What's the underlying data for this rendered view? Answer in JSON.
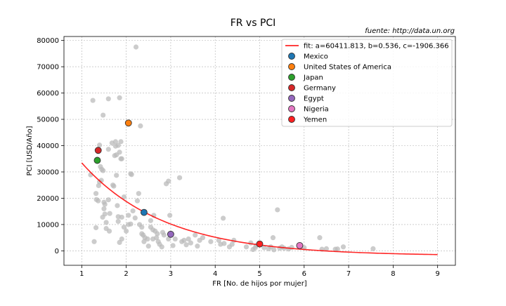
{
  "chart_data": {
    "type": "scatter",
    "title": "FR vs PCI",
    "source_note": "fuente: http://data.un.org",
    "xlabel": "FR [No. de hijos por mujer]",
    "ylabel": "PCI [USD/Año]",
    "xlim": [
      0.6,
      9.4
    ],
    "ylim": [
      -5500,
      81500
    ],
    "xticks": [
      1,
      2,
      3,
      4,
      5,
      6,
      7,
      8,
      9
    ],
    "yticks": [
      0,
      10000,
      20000,
      30000,
      40000,
      50000,
      60000,
      70000,
      80000
    ],
    "grid": true,
    "legend_position": "top-right",
    "fit": {
      "label": "fit: a=60411.813, b=0.536, c=-1906.366",
      "a": 60411.813,
      "b": 0.536,
      "c": -1906.366,
      "x_range": [
        1,
        9
      ],
      "color": "#ff0000"
    },
    "highlighted": [
      {
        "name": "Mexico",
        "x": 2.4,
        "y": 14600,
        "color": "#1f77b4"
      },
      {
        "name": "United States of America",
        "x": 2.05,
        "y": 48600,
        "color": "#ff7f0e"
      },
      {
        "name": "Japan",
        "x": 1.35,
        "y": 34400,
        "color": "#2ca02c"
      },
      {
        "name": "Germany",
        "x": 1.37,
        "y": 38200,
        "color": "#d62728"
      },
      {
        "name": "Egypt",
        "x": 3.0,
        "y": 6300,
        "color": "#9467bd"
      },
      {
        "name": "Nigeria",
        "x": 5.9,
        "y": 2000,
        "color": "#e377c2"
      },
      {
        "name": "Yemen",
        "x": 5.0,
        "y": 2600,
        "color": "#ff2020"
      }
    ],
    "background_points": {
      "color": "#bbbbbb",
      "points": [
        [
          1.25,
          57200
        ],
        [
          1.28,
          3500
        ],
        [
          1.2,
          28900
        ],
        [
          1.32,
          21800
        ],
        [
          1.32,
          8800
        ],
        [
          1.33,
          19500
        ],
        [
          1.37,
          19000
        ],
        [
          1.38,
          24800
        ],
        [
          1.4,
          26200
        ],
        [
          1.4,
          40200
        ],
        [
          1.42,
          32000
        ],
        [
          1.44,
          26800
        ],
        [
          1.45,
          31000
        ],
        [
          1.48,
          30500
        ],
        [
          1.48,
          51600
        ],
        [
          1.52,
          17700
        ],
        [
          1.5,
          16000
        ],
        [
          1.52,
          14000
        ],
        [
          1.5,
          18500
        ],
        [
          1.47,
          12800
        ],
        [
          1.55,
          10800
        ],
        [
          1.55,
          8500
        ],
        [
          1.6,
          57800
        ],
        [
          1.6,
          38600
        ],
        [
          1.6,
          19400
        ],
        [
          1.63,
          14200
        ],
        [
          1.62,
          7500
        ],
        [
          1.68,
          41000
        ],
        [
          1.7,
          25000
        ],
        [
          1.72,
          24600
        ],
        [
          1.74,
          36200
        ],
        [
          1.76,
          39800
        ],
        [
          1.76,
          41500
        ],
        [
          1.78,
          36500
        ],
        [
          1.78,
          28700
        ],
        [
          1.82,
          40100
        ],
        [
          1.85,
          58200
        ],
        [
          1.85,
          37500
        ],
        [
          1.88,
          35000
        ],
        [
          1.9,
          35000
        ],
        [
          1.88,
          41500
        ],
        [
          1.8,
          17200
        ],
        [
          1.82,
          13000
        ],
        [
          1.82,
          11200
        ],
        [
          1.85,
          3200
        ],
        [
          1.9,
          12800
        ],
        [
          1.95,
          20500
        ],
        [
          1.95,
          9000
        ],
        [
          2.05,
          13500
        ],
        [
          2.1,
          29300
        ],
        [
          2.12,
          29000
        ],
        [
          2.05,
          10000
        ],
        [
          2.1,
          10200
        ],
        [
          2.15,
          15200
        ],
        [
          2.22,
          77500
        ],
        [
          2.25,
          19000
        ],
        [
          2.28,
          21800
        ],
        [
          2.3,
          10000
        ],
        [
          2.32,
          47500
        ],
        [
          2.35,
          9000
        ],
        [
          2.38,
          6000
        ],
        [
          2.42,
          5000
        ],
        [
          2.4,
          3500
        ],
        [
          2.48,
          4500
        ],
        [
          2.5,
          1800
        ],
        [
          2.55,
          11500
        ],
        [
          2.55,
          9000
        ],
        [
          2.6,
          8000
        ],
        [
          2.62,
          13500
        ],
        [
          2.65,
          7500
        ],
        [
          2.68,
          5000
        ],
        [
          2.72,
          3500
        ],
        [
          2.75,
          2500
        ],
        [
          2.8,
          1500
        ],
        [
          2.82,
          7000
        ],
        [
          2.85,
          6000
        ],
        [
          2.9,
          25500
        ],
        [
          2.95,
          26500
        ],
        [
          2.98,
          13500
        ],
        [
          3.05,
          2000
        ],
        [
          3.2,
          27800
        ],
        [
          3.25,
          3500
        ],
        [
          3.3,
          4000
        ],
        [
          3.35,
          2300
        ],
        [
          3.4,
          4500
        ],
        [
          3.45,
          3000
        ],
        [
          3.55,
          6000
        ],
        [
          3.6,
          1800
        ],
        [
          3.65,
          4000
        ],
        [
          3.72,
          5000
        ],
        [
          3.9,
          3500
        ],
        [
          4.08,
          4000
        ],
        [
          4.12,
          2500
        ],
        [
          4.18,
          12400
        ],
        [
          4.2,
          2800
        ],
        [
          4.32,
          1500
        ],
        [
          4.38,
          2500
        ],
        [
          4.42,
          4000
        ],
        [
          4.7,
          1500
        ],
        [
          4.8,
          3000
        ],
        [
          4.85,
          500
        ],
        [
          4.9,
          1200
        ],
        [
          4.92,
          2000
        ],
        [
          5.1,
          1200
        ],
        [
          5.2,
          800
        ],
        [
          5.25,
          1500
        ],
        [
          5.3,
          5000
        ],
        [
          5.32,
          400
        ],
        [
          5.4,
          15600
        ],
        [
          5.45,
          1000
        ],
        [
          5.5,
          1500
        ],
        [
          5.55,
          1000
        ],
        [
          5.65,
          700
        ],
        [
          5.72,
          1300
        ],
        [
          6.0,
          1200
        ],
        [
          6.35,
          5000
        ],
        [
          6.4,
          600
        ],
        [
          6.5,
          800
        ],
        [
          6.7,
          600
        ],
        [
          6.75,
          700
        ],
        [
          6.88,
          1500
        ],
        [
          7.55,
          800
        ],
        [
          2.35,
          6500
        ],
        [
          2.6,
          4500
        ],
        [
          2.7,
          6500
        ],
        [
          2.95,
          4500
        ],
        [
          3.1,
          4500
        ],
        [
          2.0,
          7500
        ],
        [
          2.2,
          12500
        ],
        [
          1.9,
          4500
        ]
      ]
    }
  }
}
